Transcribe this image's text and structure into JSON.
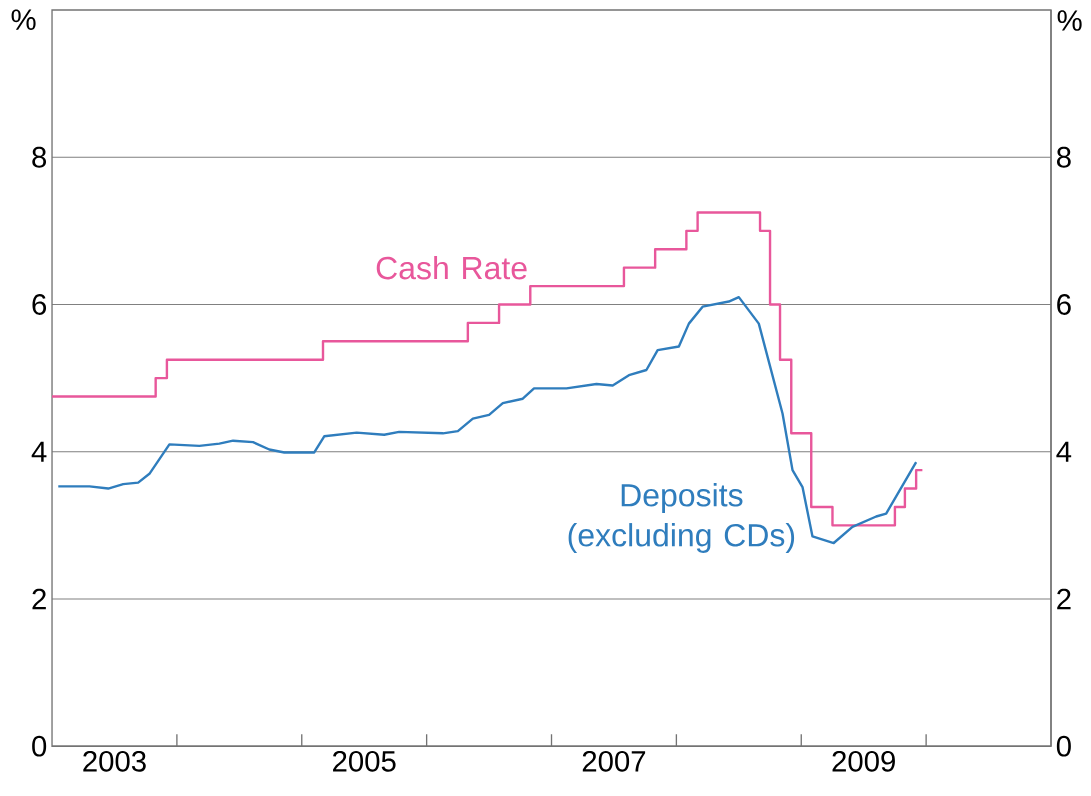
{
  "chart_data": {
    "type": "line",
    "ylabel": "%",
    "y2label": "%",
    "xlim": [
      2003,
      2011
    ],
    "ylim": [
      0,
      10
    ],
    "y2lim": [
      0,
      10
    ],
    "xticks": [
      {
        "value": 2004,
        "label": null
      },
      {
        "value": 2005,
        "label": null
      },
      {
        "value": 2006,
        "label": null
      },
      {
        "value": 2007,
        "label": null
      },
      {
        "value": 2008,
        "label": null
      },
      {
        "value": 2009,
        "label": null
      },
      {
        "value": 2010,
        "label": null
      },
      {
        "value": 2003.5,
        "label": "2003"
      },
      {
        "value": 2005.5,
        "label": "2005"
      },
      {
        "value": 2007.5,
        "label": "2007"
      },
      {
        "value": 2009.5,
        "label": "2009"
      }
    ],
    "yticks": [
      0,
      2,
      4,
      6,
      8
    ],
    "y2ticks": [
      0,
      2,
      4,
      6,
      8
    ],
    "grid": "y",
    "series": [
      {
        "name": "Cash Rate",
        "type": "step",
        "color": "#e8579b",
        "x": [
          2003.0,
          2003.83,
          2003.92,
          2005.17,
          2006.33,
          2006.58,
          2006.83,
          2007.58,
          2007.83,
          2008.08,
          2008.17,
          2008.67,
          2008.75,
          2008.83,
          2008.92,
          2009.08,
          2009.25,
          2009.75,
          2009.83,
          2009.92,
          2009.97
        ],
        "values": [
          4.75,
          5.0,
          5.25,
          5.5,
          5.75,
          6.0,
          6.25,
          6.5,
          6.75,
          7.0,
          7.25,
          7.0,
          6.0,
          5.25,
          4.25,
          3.25,
          3.0,
          3.25,
          3.5,
          3.75,
          3.75
        ]
      },
      {
        "name": "Deposits (excluding CDs)",
        "color": "#2f7dbd",
        "x": [
          2003.05,
          2003.3,
          2003.45,
          2003.57,
          2003.69,
          2003.78,
          2003.94,
          2004.18,
          2004.34,
          2004.45,
          2004.61,
          2004.74,
          2004.86,
          2005.1,
          2005.18,
          2005.44,
          2005.66,
          2005.78,
          2006.13,
          2006.25,
          2006.37,
          2006.5,
          2006.61,
          2006.77,
          2006.86,
          2007.12,
          2007.36,
          2007.49,
          2007.62,
          2007.76,
          2007.85,
          2008.02,
          2008.1,
          2008.21,
          2008.42,
          2008.5,
          2008.66,
          2008.85,
          2008.93,
          2009.01,
          2009.09,
          2009.26,
          2009.41,
          2009.6,
          2009.68,
          2009.92
        ],
        "values": [
          3.53,
          3.53,
          3.5,
          3.56,
          3.58,
          3.7,
          4.1,
          4.08,
          4.11,
          4.15,
          4.13,
          4.03,
          3.99,
          3.99,
          4.21,
          4.26,
          4.23,
          4.27,
          4.25,
          4.28,
          4.45,
          4.5,
          4.66,
          4.72,
          4.86,
          4.86,
          4.92,
          4.9,
          5.04,
          5.11,
          5.38,
          5.43,
          5.74,
          5.97,
          6.04,
          6.1,
          5.74,
          4.52,
          3.75,
          3.52,
          2.85,
          2.76,
          2.98,
          3.12,
          3.16,
          3.86
        ]
      }
    ]
  }
}
